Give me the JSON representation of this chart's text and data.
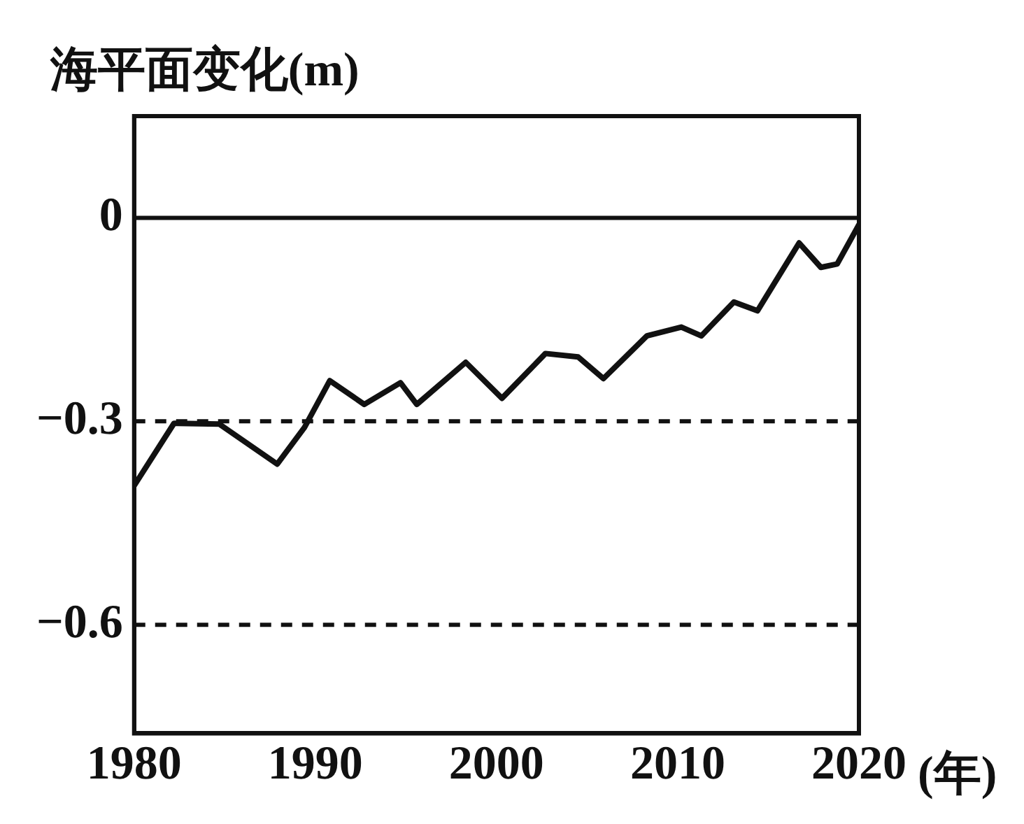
{
  "chart_data": {
    "type": "line",
    "ylabel": "海平面变化(m)",
    "xlabel": "(年)",
    "series": [
      {
        "color": "#111111",
        "x": [
          1980,
          1982.2,
          1984.7,
          1987.9,
          1989.4,
          1990.8,
          1992.7,
          1994.7,
          1995.6,
          1998.3,
          2000.3,
          2002.7,
          2004.5,
          2005.9,
          2008.3,
          2010.2,
          2011.3,
          2013.1,
          2014.4,
          2016.7,
          2017.9,
          2018.8,
          2020
        ],
        "values": [
          -0.395,
          -0.303,
          -0.304,
          -0.363,
          -0.309,
          -0.24,
          -0.275,
          -0.243,
          -0.275,
          -0.213,
          -0.266,
          -0.2,
          -0.205,
          -0.237,
          -0.174,
          -0.161,
          -0.174,
          -0.124,
          -0.137,
          -0.037,
          -0.073,
          -0.068,
          -0.01
        ]
      }
    ],
    "xlim": [
      1980,
      2020
    ],
    "xticks": [
      1980,
      1990,
      2000,
      2010,
      2020
    ],
    "ylim": [
      -0.76,
      0.15
    ],
    "yticks": [
      0,
      -0.3,
      -0.6
    ],
    "ref_lines": [
      {
        "axis": "y",
        "value": 0,
        "line_style": "solid",
        "color": "#111111"
      },
      {
        "axis": "y",
        "value": -0.3,
        "line_style": "dashed",
        "color": "#111111"
      },
      {
        "axis": "y",
        "value": -0.6,
        "line_style": "dashed",
        "color": "#111111"
      }
    ],
    "grid": false,
    "legend": false,
    "marker": "none",
    "line_style": "solid"
  }
}
